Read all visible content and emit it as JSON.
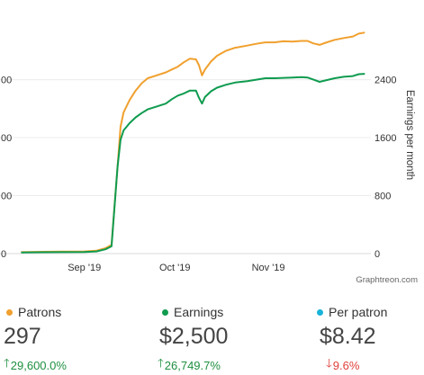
{
  "chart_data": {
    "type": "line",
    "x_axis": {
      "type": "date",
      "range": [
        "2019-08-10",
        "2019-12-05"
      ],
      "ticks": [
        {
          "date": "2019-09-01",
          "label": "Sep '19"
        },
        {
          "date": "2019-10-01",
          "label": "Oct '19"
        },
        {
          "date": "2019-11-01",
          "label": "Nov '19"
        }
      ]
    },
    "left_axis": {
      "range": [
        0,
        3400
      ],
      "ticks": [
        {
          "value": 0,
          "label": "0"
        },
        {
          "value": 800,
          "label": "00"
        },
        {
          "value": 1600,
          "label": "00"
        },
        {
          "value": 2400,
          "label": "00"
        }
      ],
      "note": "partially cropped at left edge of image"
    },
    "right_axis": {
      "label": "Earnings per month",
      "range": [
        0,
        3400
      ],
      "ticks": [
        {
          "value": 0,
          "label": "0"
        },
        {
          "value": 800,
          "label": "800"
        },
        {
          "value": 1600,
          "label": "1600"
        },
        {
          "value": 2400,
          "label": "2400"
        }
      ]
    },
    "grid": "horizontal",
    "credit": "Graphtreon.com",
    "series": [
      {
        "name": "Patrons",
        "color": "#f0a02e",
        "points": [
          [
            "2019-08-11",
            20
          ],
          [
            "2019-08-18",
            25
          ],
          [
            "2019-08-25",
            28
          ],
          [
            "2019-09-01",
            30
          ],
          [
            "2019-09-05",
            40
          ],
          [
            "2019-09-08",
            75
          ],
          [
            "2019-09-10",
            120
          ],
          [
            "2019-09-12",
            1200
          ],
          [
            "2019-09-13",
            1750
          ],
          [
            "2019-09-14",
            1950
          ],
          [
            "2019-09-16",
            2120
          ],
          [
            "2019-09-18",
            2250
          ],
          [
            "2019-09-20",
            2350
          ],
          [
            "2019-09-22",
            2420
          ],
          [
            "2019-09-25",
            2460
          ],
          [
            "2019-09-28",
            2500
          ],
          [
            "2019-09-30",
            2540
          ],
          [
            "2019-10-02",
            2580
          ],
          [
            "2019-10-04",
            2640
          ],
          [
            "2019-10-06",
            2690
          ],
          [
            "2019-10-08",
            2680
          ],
          [
            "2019-10-09",
            2600
          ],
          [
            "2019-10-10",
            2460
          ],
          [
            "2019-10-11",
            2540
          ],
          [
            "2019-10-13",
            2650
          ],
          [
            "2019-10-15",
            2730
          ],
          [
            "2019-10-18",
            2800
          ],
          [
            "2019-10-21",
            2840
          ],
          [
            "2019-10-25",
            2870
          ],
          [
            "2019-10-28",
            2895
          ],
          [
            "2019-10-31",
            2915
          ],
          [
            "2019-11-03",
            2915
          ],
          [
            "2019-11-06",
            2930
          ],
          [
            "2019-11-09",
            2925
          ],
          [
            "2019-11-12",
            2935
          ],
          [
            "2019-11-14",
            2935
          ],
          [
            "2019-11-16",
            2900
          ],
          [
            "2019-11-18",
            2880
          ],
          [
            "2019-11-20",
            2910
          ],
          [
            "2019-11-23",
            2950
          ],
          [
            "2019-11-26",
            2975
          ],
          [
            "2019-11-29",
            2995
          ],
          [
            "2019-12-01",
            3035
          ],
          [
            "2019-12-03",
            3050
          ]
        ]
      },
      {
        "name": "Earnings",
        "color": "#0f9b4f",
        "points": [
          [
            "2019-08-11",
            15
          ],
          [
            "2019-08-18",
            18
          ],
          [
            "2019-08-25",
            20
          ],
          [
            "2019-09-01",
            22
          ],
          [
            "2019-09-05",
            30
          ],
          [
            "2019-09-08",
            60
          ],
          [
            "2019-09-10",
            100
          ],
          [
            "2019-09-12",
            1200
          ],
          [
            "2019-09-13",
            1570
          ],
          [
            "2019-09-14",
            1700
          ],
          [
            "2019-09-16",
            1800
          ],
          [
            "2019-09-18",
            1880
          ],
          [
            "2019-09-20",
            1940
          ],
          [
            "2019-09-22",
            1990
          ],
          [
            "2019-09-25",
            2030
          ],
          [
            "2019-09-28",
            2070
          ],
          [
            "2019-09-30",
            2130
          ],
          [
            "2019-10-02",
            2180
          ],
          [
            "2019-10-04",
            2210
          ],
          [
            "2019-10-06",
            2250
          ],
          [
            "2019-10-08",
            2250
          ],
          [
            "2019-10-09",
            2150
          ],
          [
            "2019-10-10",
            2070
          ],
          [
            "2019-10-11",
            2160
          ],
          [
            "2019-10-13",
            2240
          ],
          [
            "2019-10-15",
            2290
          ],
          [
            "2019-10-18",
            2330
          ],
          [
            "2019-10-21",
            2360
          ],
          [
            "2019-10-25",
            2380
          ],
          [
            "2019-10-28",
            2400
          ],
          [
            "2019-10-31",
            2420
          ],
          [
            "2019-11-03",
            2420
          ],
          [
            "2019-11-06",
            2425
          ],
          [
            "2019-11-09",
            2430
          ],
          [
            "2019-11-12",
            2435
          ],
          [
            "2019-11-14",
            2430
          ],
          [
            "2019-11-16",
            2400
          ],
          [
            "2019-11-18",
            2370
          ],
          [
            "2019-11-20",
            2390
          ],
          [
            "2019-11-23",
            2420
          ],
          [
            "2019-11-26",
            2440
          ],
          [
            "2019-11-29",
            2450
          ],
          [
            "2019-12-01",
            2475
          ],
          [
            "2019-12-03",
            2480
          ]
        ]
      }
    ]
  },
  "stats": {
    "patrons": {
      "label": "Patrons",
      "color": "#f0a02e",
      "value": "297",
      "arrow": "🡑",
      "change": "29,600.0%",
      "direction": "up"
    },
    "earnings": {
      "label": "Earnings",
      "color": "#0f9b4f",
      "value": "$2,500",
      "arrow": "🡑",
      "change": "26,749.7%",
      "direction": "up"
    },
    "per_patron": {
      "label": "Per patron",
      "color": "#17b3d9",
      "value": "$8.42",
      "arrow": "🡓",
      "change": "9.6%",
      "direction": "down"
    }
  }
}
